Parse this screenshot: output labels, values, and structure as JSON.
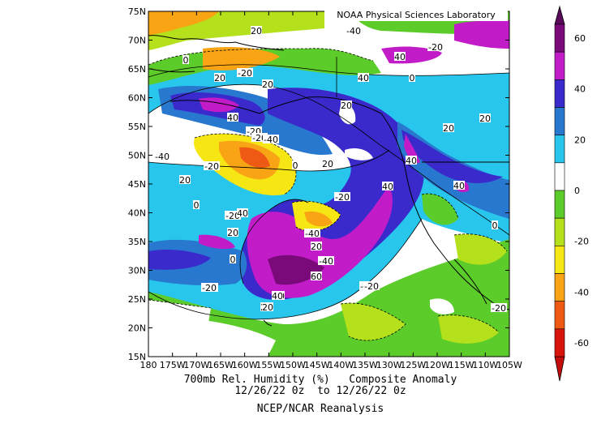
{
  "credit": "NOAA Physical Sciences Laboratory",
  "caption": {
    "line1": "700mb Rel. Humidity (%)   Composite Anomaly",
    "line2": "12/26/22 0z  to 12/26/22 0z",
    "line3": "NCEP/NCAR Reanalysis"
  },
  "axes": {
    "lat_labels": [
      "75N",
      "70N",
      "65N",
      "60N",
      "55N",
      "50N",
      "45N",
      "40N",
      "35N",
      "30N",
      "25N",
      "20N",
      "15N"
    ],
    "lon_labels": [
      "180",
      "175W",
      "170W",
      "165W",
      "160W",
      "155W",
      "150W",
      "145W",
      "140W",
      "135W",
      "130W",
      "125W",
      "120W",
      "115W",
      "110W",
      "105W"
    ]
  },
  "colorbar": {
    "ticks": [
      "60",
      "40",
      "20",
      "0",
      "-20",
      "-40",
      "-60"
    ],
    "colors": [
      "#7a0a7a",
      "#c21cc8",
      "#3a2acc",
      "#2878d0",
      "#28c6ec",
      "#ffffff",
      "#5ccc2a",
      "#b4e01c",
      "#f6e614",
      "#f8a414",
      "#ee5a14",
      "#d8140c"
    ]
  },
  "contour_labels": [
    "20",
    "-40",
    "40",
    "0",
    "-20",
    "20",
    "-20",
    "40",
    "0",
    "20",
    "-20",
    "-20",
    "40",
    "20",
    "20",
    "-40",
    "20",
    "-40",
    "-20",
    "40",
    "0",
    "20",
    "-20",
    "-40",
    "0",
    "40",
    "-20",
    "0",
    "40",
    "20",
    "20",
    "40",
    "0",
    "-20",
    "-40",
    "20",
    "0",
    "-20",
    "20",
    "60",
    "-20",
    "40",
    "20",
    "-20",
    "20",
    "20",
    "-20"
  ]
}
